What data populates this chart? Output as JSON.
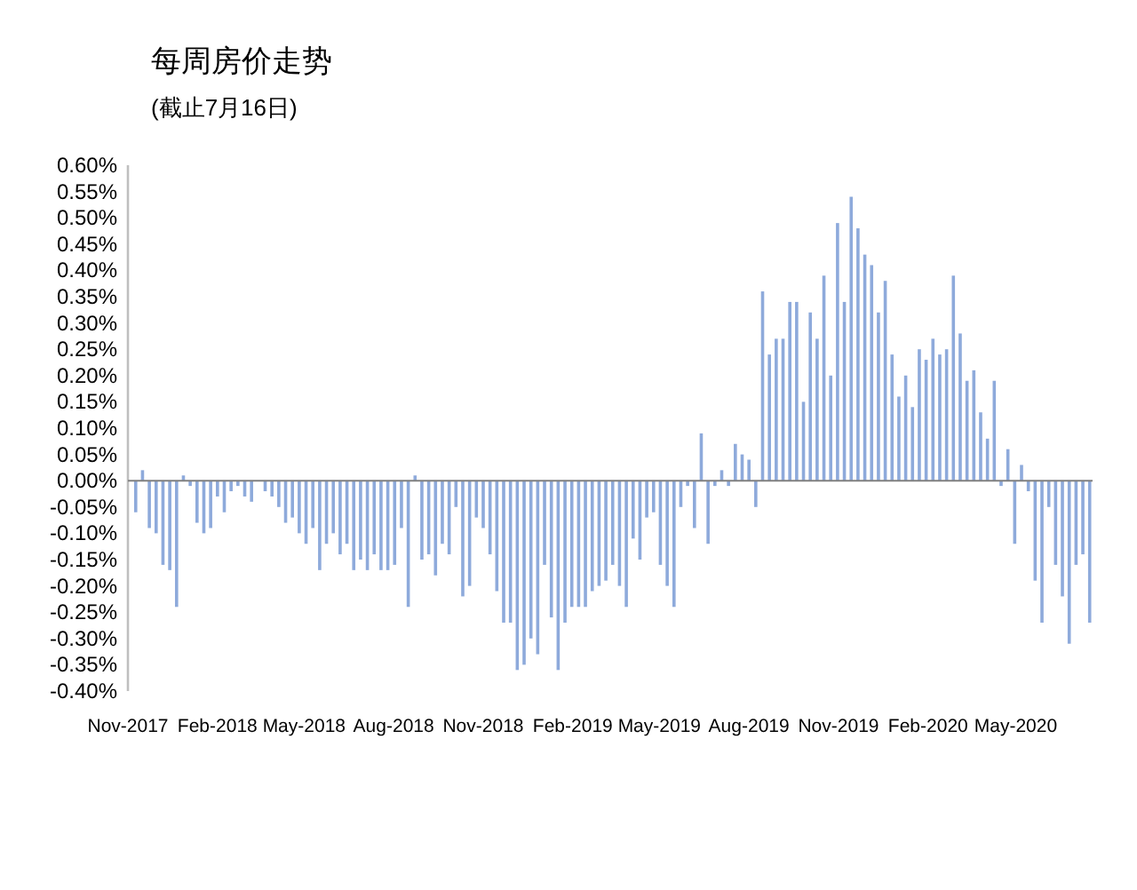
{
  "chart_data": {
    "type": "bar",
    "title": "每周房价走势",
    "subtitle": "(截止7月16日)",
    "color": "#8eaadb",
    "x": [
      "2017-11-09",
      "2017-11-16",
      "2017-11-23",
      "2017-11-30",
      "2017-12-07",
      "2017-12-14",
      "2017-12-21",
      "2017-12-28",
      "2018-01-04",
      "2018-01-11",
      "2018-01-18",
      "2018-01-25",
      "2018-02-01",
      "2018-02-08",
      "2018-02-15",
      "2018-02-22",
      "2018-03-01",
      "2018-03-08",
      "2018-03-15",
      "2018-03-22",
      "2018-03-29",
      "2018-04-05",
      "2018-04-12",
      "2018-04-19",
      "2018-04-26",
      "2018-05-03",
      "2018-05-10",
      "2018-05-17",
      "2018-05-24",
      "2018-05-31",
      "2018-06-07",
      "2018-06-14",
      "2018-06-21",
      "2018-06-28",
      "2018-07-05",
      "2018-07-12",
      "2018-07-19",
      "2018-07-26",
      "2018-08-02",
      "2018-08-09",
      "2018-08-16",
      "2018-08-23",
      "2018-08-30",
      "2018-09-06",
      "2018-09-13",
      "2018-09-20",
      "2018-09-27",
      "2018-10-04",
      "2018-10-11",
      "2018-10-18",
      "2018-10-25",
      "2018-11-01",
      "2018-11-08",
      "2018-11-15",
      "2018-11-22",
      "2018-11-29",
      "2018-12-06",
      "2018-12-13",
      "2018-12-20",
      "2018-12-27",
      "2019-01-03",
      "2019-01-10",
      "2019-01-17",
      "2019-01-24",
      "2019-01-31",
      "2019-02-07",
      "2019-02-14",
      "2019-02-21",
      "2019-02-28",
      "2019-03-07",
      "2019-03-14",
      "2019-03-21",
      "2019-03-28",
      "2019-04-04",
      "2019-04-11",
      "2019-04-18",
      "2019-04-25",
      "2019-05-02",
      "2019-05-09",
      "2019-05-16",
      "2019-05-23",
      "2019-05-30",
      "2019-06-06",
      "2019-06-13",
      "2019-06-20",
      "2019-06-27",
      "2019-07-04",
      "2019-07-11",
      "2019-07-18",
      "2019-07-25",
      "2019-08-01",
      "2019-08-08",
      "2019-08-15",
      "2019-08-22",
      "2019-08-29",
      "2019-09-05",
      "2019-09-12",
      "2019-09-19",
      "2019-09-26",
      "2019-10-03",
      "2019-10-10",
      "2019-10-17",
      "2019-10-24",
      "2019-10-31",
      "2019-11-07",
      "2019-11-14",
      "2019-11-21",
      "2019-11-28",
      "2019-12-05",
      "2019-12-12",
      "2019-12-19",
      "2019-12-26",
      "2020-01-02",
      "2020-01-09",
      "2020-01-16",
      "2020-01-23",
      "2020-01-30",
      "2020-02-06",
      "2020-02-13",
      "2020-02-20",
      "2020-02-27",
      "2020-03-05",
      "2020-03-12",
      "2020-03-19",
      "2020-03-26",
      "2020-04-02",
      "2020-04-09",
      "2020-04-16",
      "2020-04-23",
      "2020-04-30",
      "2020-05-07",
      "2020-05-14",
      "2020-05-21",
      "2020-05-28",
      "2020-06-04",
      "2020-06-11",
      "2020-06-18",
      "2020-06-25",
      "2020-07-02",
      "2020-07-09",
      "2020-07-16"
    ],
    "values": [
      -0.06,
      0.02,
      -0.09,
      -0.1,
      -0.16,
      -0.17,
      -0.24,
      0.01,
      -0.01,
      -0.08,
      -0.1,
      -0.09,
      -0.03,
      -0.06,
      -0.02,
      -0.01,
      -0.03,
      -0.04,
      0.0,
      -0.02,
      -0.03,
      -0.05,
      -0.08,
      -0.07,
      -0.1,
      -0.12,
      -0.09,
      -0.17,
      -0.12,
      -0.1,
      -0.14,
      -0.12,
      -0.17,
      -0.15,
      -0.17,
      -0.14,
      -0.17,
      -0.17,
      -0.16,
      -0.09,
      -0.24,
      0.01,
      -0.15,
      -0.14,
      -0.18,
      -0.12,
      -0.14,
      -0.05,
      -0.22,
      -0.2,
      -0.07,
      -0.09,
      -0.14,
      -0.21,
      -0.27,
      -0.27,
      -0.36,
      -0.35,
      -0.3,
      -0.33,
      -0.16,
      -0.26,
      -0.36,
      -0.27,
      -0.24,
      -0.24,
      -0.24,
      -0.21,
      -0.2,
      -0.19,
      -0.16,
      -0.2,
      -0.24,
      -0.11,
      -0.15,
      -0.07,
      -0.06,
      -0.16,
      -0.2,
      -0.24,
      -0.05,
      -0.01,
      -0.09,
      0.09,
      -0.12,
      -0.01,
      0.02,
      -0.01,
      0.07,
      0.05,
      0.04,
      -0.05,
      0.36,
      0.24,
      0.27,
      0.27,
      0.34,
      0.34,
      0.15,
      0.32,
      0.27,
      0.39,
      0.2,
      0.49,
      0.34,
      0.54,
      0.48,
      0.43,
      0.41,
      0.32,
      0.38,
      0.24,
      0.16,
      0.2,
      0.14,
      0.25,
      0.23,
      0.27,
      0.24,
      0.25,
      0.39,
      0.28,
      0.19,
      0.21,
      0.13,
      0.08,
      0.19,
      -0.01,
      0.06,
      -0.12,
      0.03,
      -0.02,
      -0.19,
      -0.27,
      -0.05,
      -0.16,
      -0.22,
      -0.31,
      -0.16,
      -0.14,
      -0.27
    ],
    "xlim": [
      "2017-11-01",
      "2020-07-19"
    ],
    "xticks": [
      {
        "value": "2017-11-01",
        "label": "Nov-2017"
      },
      {
        "value": "2018-02-01",
        "label": "Feb-2018"
      },
      {
        "value": "2018-05-01",
        "label": "May-2018"
      },
      {
        "value": "2018-08-01",
        "label": "Aug-2018"
      },
      {
        "value": "2018-11-01",
        "label": "Nov-2018"
      },
      {
        "value": "2019-02-01",
        "label": "Feb-2019"
      },
      {
        "value": "2019-05-01",
        "label": "May-2019"
      },
      {
        "value": "2019-08-01",
        "label": "Aug-2019"
      },
      {
        "value": "2019-11-01",
        "label": "Nov-2019"
      },
      {
        "value": "2020-02-01",
        "label": "Feb-2020"
      },
      {
        "value": "2020-05-01",
        "label": "May-2020"
      }
    ],
    "ylim": [
      -0.4,
      0.6
    ],
    "yticks": [
      {
        "value": -0.4,
        "label": "-0.40%"
      },
      {
        "value": -0.35,
        "label": "-0.35%"
      },
      {
        "value": -0.3,
        "label": "-0.30%"
      },
      {
        "value": -0.25,
        "label": "-0.25%"
      },
      {
        "value": -0.2,
        "label": "-0.20%"
      },
      {
        "value": -0.15,
        "label": "-0.15%"
      },
      {
        "value": -0.1,
        "label": "-0.10%"
      },
      {
        "value": -0.05,
        "label": "-0.05%"
      },
      {
        "value": 0,
        "label": "0.00%"
      },
      {
        "value": 0.05,
        "label": "0.05%"
      },
      {
        "value": 0.1,
        "label": "0.10%"
      },
      {
        "value": 0.15,
        "label": "0.15%"
      },
      {
        "value": 0.2,
        "label": "0.20%"
      },
      {
        "value": 0.25,
        "label": "0.25%"
      },
      {
        "value": 0.3,
        "label": "0.30%"
      },
      {
        "value": 0.35,
        "label": "0.35%"
      },
      {
        "value": 0.4,
        "label": "0.40%"
      },
      {
        "value": 0.45,
        "label": "0.45%"
      },
      {
        "value": 0.5,
        "label": "0.50%"
      },
      {
        "value": 0.55,
        "label": "0.55%"
      },
      {
        "value": 0.6,
        "label": "0.60%"
      }
    ]
  }
}
